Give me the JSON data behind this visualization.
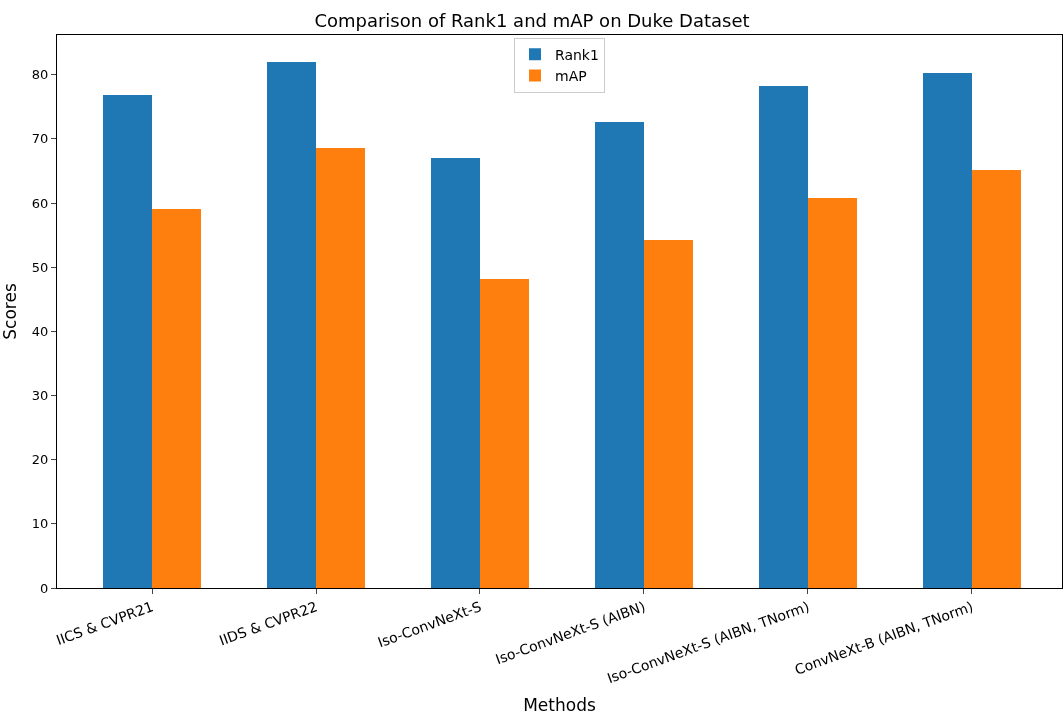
{
  "chart_data": {
    "type": "bar",
    "title": "Comparison of Rank1 and mAP on Duke Dataset",
    "xlabel": "Methods",
    "ylabel": "Scores",
    "categories": [
      "IICS & CVPR21",
      "IIDS & CVPR22",
      "Iso-ConvNeXt-S",
      "Iso-ConvNeXt-S (AIBN)",
      "Iso-ConvNeXt-S (AIBN, TNorm)",
      "ConvNeXt-B (AIBN, TNorm)"
    ],
    "series": [
      {
        "name": "Rank1",
        "color": "#1f77b4",
        "values": [
          76.9,
          82.0,
          67.1,
          72.7,
          78.2,
          80.3
        ]
      },
      {
        "name": "mAP",
        "color": "#ff7f0e",
        "values": [
          59.1,
          68.6,
          48.2,
          54.3,
          60.8,
          65.2
        ]
      }
    ],
    "ylim": [
      0,
      86.2
    ],
    "yticks": [
      0,
      10,
      20,
      30,
      40,
      50,
      60,
      70,
      80
    ],
    "legend": "top"
  }
}
